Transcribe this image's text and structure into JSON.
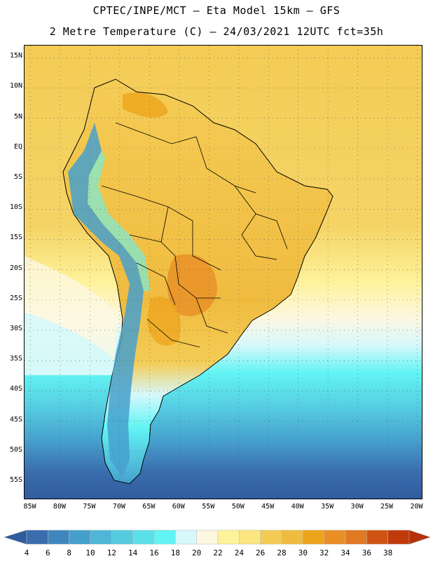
{
  "title_line1": "CPTEC/INPE/MCT –  Eta Model 15km – GFS",
  "title_line2": "2 Metre Temperature (C) – 24/03/2021 12UTC fct=35h",
  "lat_labels": [
    "15N",
    "10N",
    "5N",
    "EQ",
    "5S",
    "10S",
    "15S",
    "20S",
    "25S",
    "30S",
    "35S",
    "40S",
    "45S",
    "50S",
    "55S"
  ],
  "lat_values": [
    15,
    10,
    5,
    0,
    -5,
    -10,
    -15,
    -20,
    -25,
    -30,
    -35,
    -40,
    -45,
    -50,
    -55
  ],
  "lon_labels": [
    "85W",
    "80W",
    "75W",
    "70W",
    "65W",
    "60W",
    "55W",
    "50W",
    "45W",
    "40W",
    "35W",
    "30W",
    "25W",
    "20W"
  ],
  "lon_values": [
    -85,
    -80,
    -75,
    -70,
    -65,
    -60,
    -55,
    -50,
    -45,
    -40,
    -35,
    -30,
    -25,
    -20
  ],
  "map_extent": {
    "lon_min": -86,
    "lon_max": -19,
    "lat_min": -58,
    "lat_max": 17
  },
  "colorbar": {
    "ticks": [
      "4",
      "6",
      "8",
      "10",
      "12",
      "14",
      "16",
      "18",
      "20",
      "22",
      "24",
      "26",
      "28",
      "30",
      "32",
      "34",
      "36",
      "38"
    ],
    "colors": [
      "#3a6cae",
      "#3f86bf",
      "#46a0cd",
      "#4fb6d8",
      "#55cbe0",
      "#5be0ea",
      "#62f4f4",
      "#d6f8fb",
      "#fdf7e1",
      "#fef29a",
      "#fce682",
      "#f4cc55",
      "#f0bc40",
      "#eda41d",
      "#e98f26",
      "#e17822",
      "#cf5413",
      "#c03a0c"
    ],
    "under_color": "#2f5c9e",
    "over_color": "#b83209"
  },
  "colors": {
    "ocean_south_deep": "#2f5c9e",
    "ocean_mid": "#4fb6d8",
    "ocean_cyan": "#62f4f4",
    "ocean_pale": "#d6f8fb",
    "ocean_warm": "#f4cc55",
    "land_warm": "#f0bc40",
    "land_hot": "#e98f26",
    "andes": "#46a0cd",
    "border": "#000000"
  }
}
